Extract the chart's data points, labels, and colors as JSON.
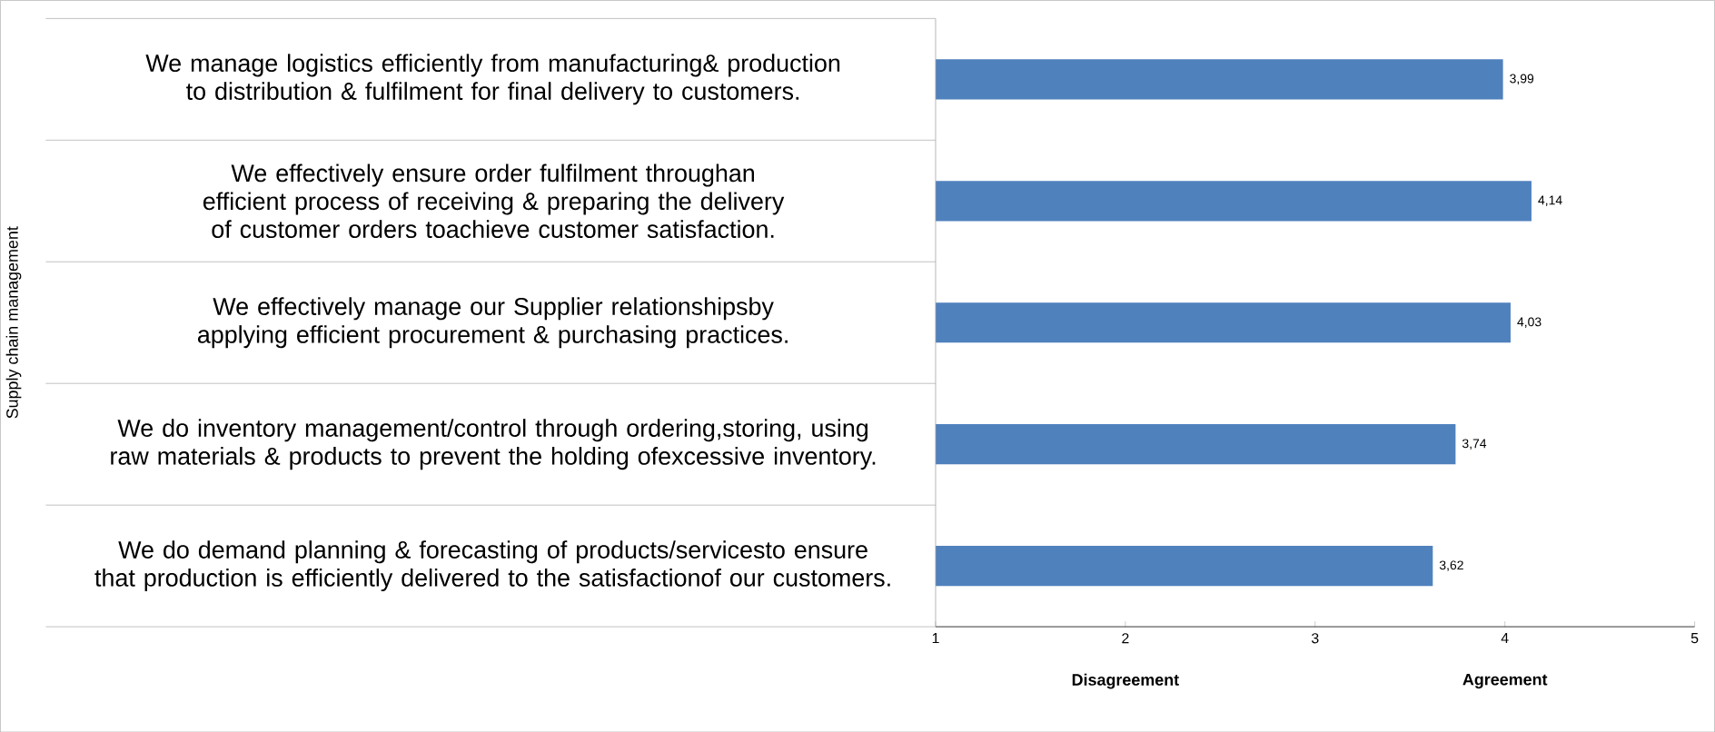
{
  "chart_data": {
    "type": "bar",
    "orientation": "horizontal",
    "ylabel": "Supply chain management",
    "categories": [
      "We manage logistics efficiently from manufacturing& production to distribution & fulfilment for final delivery to customers.",
      "We effectively ensure order fulfilment throughan efficient process of receiving & preparing the delivery of customer orders toachieve customer satisfaction.",
      "We effectively manage our Supplier relationshipsby applying efficient procurement & purchasing practices.",
      "We do inventory management/control through ordering,storing, using raw materials & products to prevent the holding ofexcessive inventory.",
      "We do demand planning & forecasting of products/servicesto ensure that production is efficiently delivered to the satisfactionof our customers."
    ],
    "values": [
      3.99,
      4.14,
      4.03,
      3.74,
      3.62
    ],
    "value_labels": [
      "3,99",
      "4,14",
      "4,03",
      "3,74",
      "3,62"
    ],
    "color": "#4f81bd",
    "xlim": [
      1,
      5
    ],
    "xticks": [
      {
        "value": 1,
        "label": "1"
      },
      {
        "value": 2,
        "label": "2"
      },
      {
        "value": 3,
        "label": "3"
      },
      {
        "value": 4,
        "label": "4"
      },
      {
        "value": 5,
        "label": "5"
      }
    ],
    "annotations": [
      "Disagreement",
      "Agreement"
    ]
  }
}
